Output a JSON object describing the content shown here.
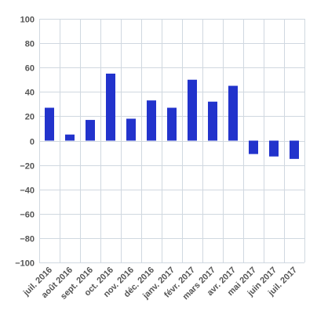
{
  "chart_data": {
    "type": "bar",
    "title": "",
    "xlabel": "",
    "ylabel": "",
    "categories": [
      "juil. 2016",
      "août 2016",
      "sept. 2016",
      "oct. 2016",
      "nov. 2016",
      "déc. 2016",
      "janv. 2017",
      "févr. 2017",
      "mars 2017",
      "avr. 2017",
      "mai 2017",
      "juin 2017",
      "juil. 2017"
    ],
    "values": [
      27,
      5,
      17,
      55,
      18,
      33,
      27,
      50,
      32,
      45,
      -11,
      -13,
      -15
    ],
    "ylim": [
      -100,
      100
    ],
    "yticks": [
      100,
      80,
      60,
      40,
      20,
      0,
      -20,
      -40,
      -60,
      -80,
      -100
    ],
    "ytick_labels": [
      "100",
      "80",
      "60",
      "40",
      "20",
      "0",
      "−20",
      "−40",
      "−60",
      "−80",
      "−100"
    ],
    "grid": true,
    "bar_color": "#2233cc",
    "grid_color": "#d0d8e0"
  }
}
